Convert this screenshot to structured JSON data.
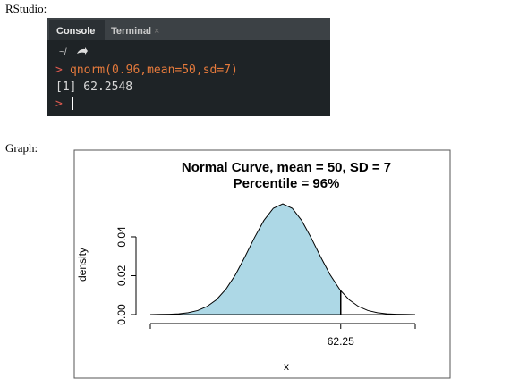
{
  "labels": {
    "rstudio": "RStudio:",
    "graph": "Graph:"
  },
  "console": {
    "tabs": [
      "Console",
      "Terminal"
    ],
    "path": "~/",
    "input": {
      "prompt": ">",
      "command": "qnorm(0.96,mean=50,sd=7)"
    },
    "output": "[1] 62.2548",
    "next_prompt": ">"
  },
  "chart_data": {
    "type": "area",
    "title": "Normal Curve, mean = 50, SD = 7",
    "subtitle": "Percentile = 96%",
    "x_label": "x",
    "y_label": "density",
    "x": [
      22,
      24,
      26,
      28,
      30,
      32,
      34,
      36,
      38,
      40,
      42,
      44,
      46,
      48,
      50,
      52,
      54,
      56,
      58,
      60,
      62,
      62.25,
      64,
      66,
      68,
      70,
      72,
      74,
      76,
      78
    ],
    "values": [
      0.0,
      0.0001,
      0.0002,
      0.0004,
      0.001,
      0.0021,
      0.0042,
      0.0077,
      0.0131,
      0.0205,
      0.0297,
      0.0395,
      0.0484,
      0.0547,
      0.057,
      0.0547,
      0.0484,
      0.0395,
      0.0297,
      0.0205,
      0.0131,
      0.0123,
      0.0077,
      0.0042,
      0.0021,
      0.001,
      0.0004,
      0.0002,
      0.0001,
      0.0
    ],
    "shade_to": 62.25,
    "shade_color": "#add8e6",
    "line_color": "#000000",
    "xlim": [
      22,
      78
    ],
    "xticks": [
      62.25
    ],
    "ylim": [
      0,
      0.057
    ],
    "yticks": [
      {
        "value": 0,
        "label": "0.00"
      },
      {
        "value": 0.02,
        "label": "0.02"
      },
      {
        "value": 0.04,
        "label": "0.04"
      }
    ]
  }
}
